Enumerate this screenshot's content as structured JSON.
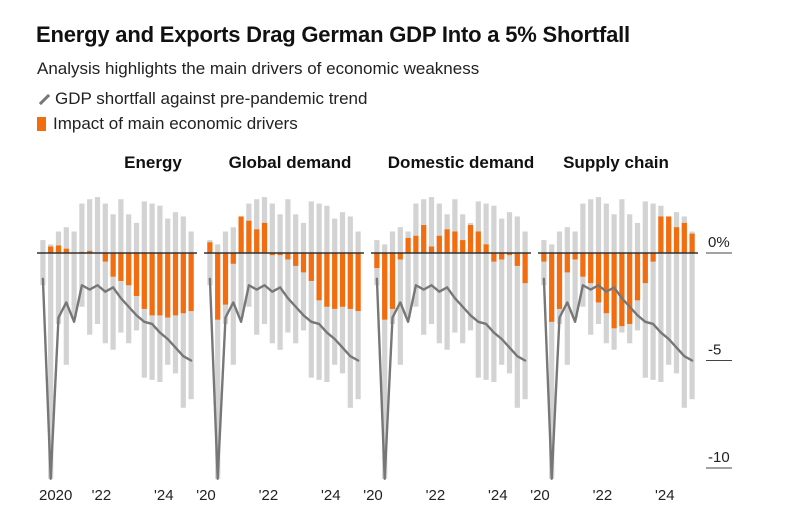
{
  "header": {
    "title": "Energy and Exports Drag German GDP Into a 5% Shortfall",
    "subtitle": "Analysis highlights the main drivers of economic weakness"
  },
  "legend": {
    "line_label": "GDP shortfall against pre-pandemic trend",
    "bar_label": "Impact of main economic drivers"
  },
  "colors": {
    "driver": "#f26d0f",
    "range": "#d3d3d3",
    "line": "#777777",
    "zero": "#333333"
  },
  "chart_data": {
    "type": "bar",
    "y_tick_labels": [
      "0%",
      "-5",
      "-10"
    ],
    "y_ticks": [
      0,
      -5,
      -10
    ],
    "ylim": [
      -10.5,
      2.6
    ],
    "x_tick_labels": [
      [
        "2020",
        "'22",
        "'24"
      ],
      [
        "'20",
        "'22",
        "'24"
      ],
      [
        "'20",
        "'22",
        "'24"
      ],
      [
        "'20",
        "'22",
        "'24"
      ]
    ],
    "x_tick_quarters": [
      0,
      8,
      16
    ],
    "gdp_shortfall": [
      -1.2,
      -10.5,
      -3,
      -2.3,
      -3.2,
      -1.5,
      -1.7,
      -1.5,
      -1.8,
      -1.6,
      -2.1,
      -2.5,
      -2.9,
      -3.2,
      -3.3,
      -3.7,
      -4.0,
      -4.4,
      -4.8,
      -5.0
    ],
    "range_bars": [
      {
        "low": -1.5,
        "high": 0.6
      },
      {
        "low": -10.5,
        "high": 0.4
      },
      {
        "low": -3.3,
        "high": 1.0
      },
      {
        "low": -5.2,
        "high": 1.2
      },
      {
        "low": -3.0,
        "high": 1.0
      },
      {
        "low": -2.5,
        "high": 2.3
      },
      {
        "low": -3.8,
        "high": 2.5
      },
      {
        "low": -3.3,
        "high": 2.6
      },
      {
        "low": -4.2,
        "high": 2.3
      },
      {
        "low": -4.5,
        "high": 1.8
      },
      {
        "low": -3.7,
        "high": 2.5
      },
      {
        "low": -4.2,
        "high": 1.8
      },
      {
        "low": -3.6,
        "high": 1.4
      },
      {
        "low": -5.8,
        "high": 2.4
      },
      {
        "low": -5.9,
        "high": 2.3
      },
      {
        "low": -6.0,
        "high": 2.2
      },
      {
        "low": -5.2,
        "high": 1.6
      },
      {
        "low": -5.6,
        "high": 1.9
      },
      {
        "low": -7.2,
        "high": 1.7
      },
      {
        "low": -6.8,
        "high": 1.0
      }
    ],
    "panels": [
      {
        "name": "Energy",
        "values": [
          0,
          0.3,
          0.35,
          0.2,
          0,
          0.05,
          0.1,
          0,
          -0.4,
          -1.1,
          -1.3,
          -1.5,
          -2.0,
          -2.6,
          -2.9,
          -2.9,
          -3.0,
          -2.9,
          -2.8,
          -2.7
        ]
      },
      {
        "name": "Global demand",
        "values": [
          0.5,
          -3.1,
          -2.4,
          -0.5,
          1.7,
          1.5,
          1.1,
          1.4,
          -0.1,
          -0.1,
          -0.3,
          -0.6,
          -0.9,
          -1.3,
          -2.2,
          -2.5,
          -2.6,
          -2.5,
          -2.6,
          -2.7
        ]
      },
      {
        "name": "Domestic demand",
        "values": [
          -0.7,
          -3.1,
          -2.6,
          -0.3,
          0.7,
          0.8,
          1.3,
          0.3,
          0.8,
          1.1,
          1.0,
          0.6,
          1.3,
          1.0,
          0.4,
          -0.4,
          -0.3,
          -0.1,
          -0.6,
          -1.4
        ]
      },
      {
        "name": "Supply chain",
        "values": [
          -0.4,
          -3.2,
          -2.6,
          -0.9,
          -0.3,
          -1.1,
          -1.4,
          -2.3,
          -2.8,
          -3.5,
          -3.4,
          -3.3,
          -2.2,
          -1.4,
          -0.4,
          1.7,
          1.7,
          1.2,
          1.4,
          0.9
        ]
      }
    ]
  }
}
